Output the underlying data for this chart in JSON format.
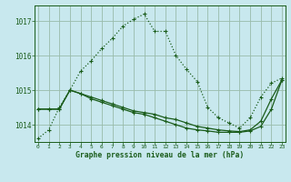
{
  "title": "Graphe pression niveau de la mer (hPa)",
  "bg_color": "#c8e8ee",
  "grid_color": "#99bbaa",
  "line_color": "#1a5c1a",
  "hours": [
    0,
    1,
    2,
    3,
    4,
    5,
    6,
    7,
    8,
    9,
    10,
    11,
    12,
    13,
    14,
    15,
    16,
    17,
    18,
    19,
    20,
    21,
    22,
    23
  ],
  "series_dotted": [
    1013.6,
    1013.85,
    1014.5,
    1015.0,
    1015.55,
    1015.85,
    1016.2,
    1016.5,
    1016.85,
    1017.05,
    1017.2,
    1016.7,
    1016.7,
    1016.0,
    1015.6,
    1015.25,
    1014.5,
    1014.2,
    1014.05,
    1013.9,
    1014.2,
    1014.8,
    1015.2,
    1015.35
  ],
  "series_mid": [
    1014.45,
    1014.45,
    1014.45,
    1015.0,
    1014.9,
    1014.8,
    1014.7,
    1014.6,
    1014.5,
    1014.4,
    1014.35,
    1014.3,
    1014.2,
    1014.15,
    1014.05,
    1013.95,
    1013.9,
    1013.85,
    1013.82,
    1013.8,
    1013.85,
    1014.1,
    1014.75,
    1015.3
  ],
  "series_bot": [
    1014.45,
    1014.45,
    1014.45,
    1015.0,
    1014.9,
    1014.75,
    1014.65,
    1014.55,
    1014.45,
    1014.35,
    1014.3,
    1014.2,
    1014.1,
    1014.0,
    1013.9,
    1013.85,
    1013.82,
    1013.78,
    1013.78,
    1013.78,
    1013.82,
    1013.95,
    1014.45,
    1015.3
  ],
  "ylim_min": 1013.5,
  "ylim_max": 1017.45,
  "yticks": [
    1014,
    1015,
    1016,
    1017
  ]
}
